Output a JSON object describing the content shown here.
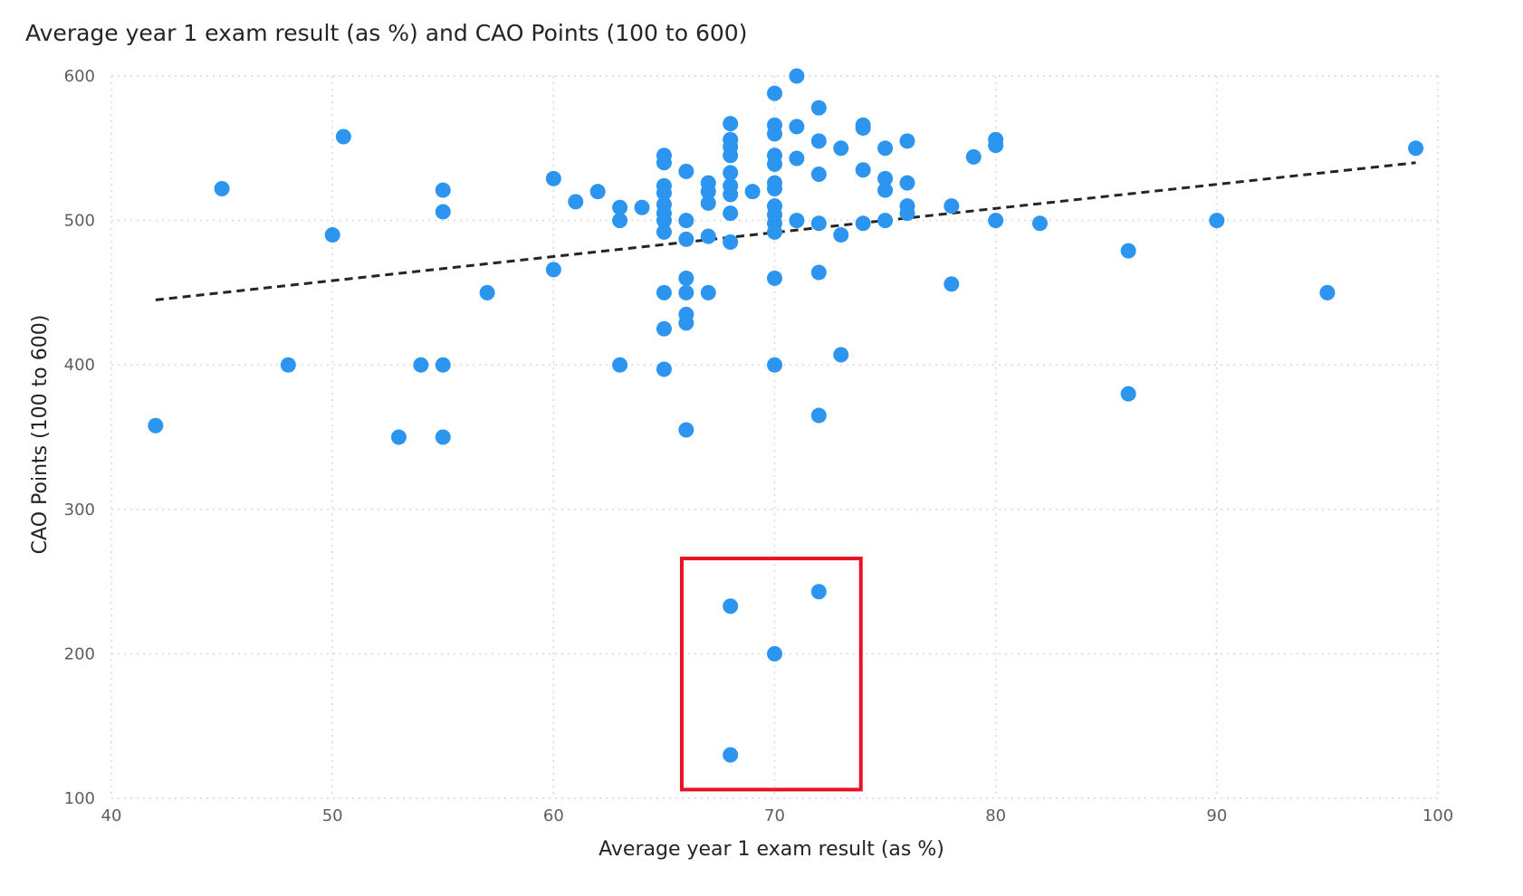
{
  "chart_data": {
    "type": "scatter",
    "title": "Average year 1 exam result (as %) and CAO Points (100 to 600)",
    "xlabel": "Average year 1 exam result (as %)",
    "ylabel": "CAO Points (100 to 600)",
    "xlim": [
      40,
      100
    ],
    "ylim": [
      100,
      600
    ],
    "xticks": [
      "40",
      "50",
      "60",
      "70",
      "80",
      "90",
      "100"
    ],
    "yticks": [
      "100",
      "200",
      "300",
      "400",
      "500",
      "600"
    ],
    "grid": true,
    "point_color": "#2b95ef",
    "trendline": {
      "style": "dashed",
      "color": "#252423",
      "points": [
        [
          42,
          445
        ],
        [
          99,
          540
        ]
      ]
    },
    "highlight_box": {
      "color": "#e81123",
      "x_range": [
        65.8,
        73.9
      ],
      "y_range": [
        106,
        266
      ]
    },
    "points": [
      [
        42,
        358
      ],
      [
        45,
        522
      ],
      [
        48,
        400
      ],
      [
        50,
        490
      ],
      [
        50.5,
        558
      ],
      [
        53,
        350
      ],
      [
        54,
        400
      ],
      [
        55,
        400
      ],
      [
        55,
        350
      ],
      [
        55,
        521
      ],
      [
        55,
        506
      ],
      [
        57,
        450
      ],
      [
        60,
        529
      ],
      [
        60,
        466
      ],
      [
        61,
        513
      ],
      [
        62,
        520
      ],
      [
        63,
        509
      ],
      [
        63,
        500
      ],
      [
        63,
        400
      ],
      [
        64,
        509
      ],
      [
        65,
        545
      ],
      [
        65,
        540
      ],
      [
        65,
        524
      ],
      [
        65,
        519
      ],
      [
        65,
        511
      ],
      [
        65,
        505
      ],
      [
        65,
        500
      ],
      [
        65,
        492
      ],
      [
        65,
        450
      ],
      [
        65,
        425
      ],
      [
        65,
        397
      ],
      [
        66,
        534
      ],
      [
        66,
        500
      ],
      [
        66,
        487
      ],
      [
        66,
        460
      ],
      [
        66,
        450
      ],
      [
        66,
        435
      ],
      [
        66,
        429
      ],
      [
        66,
        355
      ],
      [
        67,
        526
      ],
      [
        67,
        520
      ],
      [
        67,
        512
      ],
      [
        67,
        489
      ],
      [
        67,
        450
      ],
      [
        68,
        567
      ],
      [
        68,
        556
      ],
      [
        68,
        551
      ],
      [
        68,
        545
      ],
      [
        68,
        533
      ],
      [
        68,
        524
      ],
      [
        68,
        518
      ],
      [
        68,
        505
      ],
      [
        68,
        485
      ],
      [
        68,
        233
      ],
      [
        68,
        130
      ],
      [
        69,
        520
      ],
      [
        70,
        588
      ],
      [
        70,
        566
      ],
      [
        70,
        560
      ],
      [
        70,
        545
      ],
      [
        70,
        539
      ],
      [
        70,
        526
      ],
      [
        70,
        522
      ],
      [
        70,
        510
      ],
      [
        70,
        504
      ],
      [
        70,
        498
      ],
      [
        70,
        492
      ],
      [
        70,
        460
      ],
      [
        70,
        400
      ],
      [
        70,
        200
      ],
      [
        71,
        600
      ],
      [
        71,
        565
      ],
      [
        71,
        543
      ],
      [
        71,
        500
      ],
      [
        72,
        578
      ],
      [
        72,
        555
      ],
      [
        72,
        532
      ],
      [
        72,
        498
      ],
      [
        72,
        464
      ],
      [
        72,
        365
      ],
      [
        72,
        243
      ],
      [
        73,
        550
      ],
      [
        73,
        490
      ],
      [
        73,
        407
      ],
      [
        74,
        566
      ],
      [
        74,
        564
      ],
      [
        74,
        535
      ],
      [
        74,
        498
      ],
      [
        75,
        550
      ],
      [
        75,
        529
      ],
      [
        75,
        521
      ],
      [
        75,
        500
      ],
      [
        76,
        555
      ],
      [
        76,
        526
      ],
      [
        76,
        510
      ],
      [
        76,
        505
      ],
      [
        78,
        510
      ],
      [
        78,
        456
      ],
      [
        79,
        544
      ],
      [
        80,
        556
      ],
      [
        80,
        552
      ],
      [
        80,
        500
      ],
      [
        82,
        498
      ],
      [
        86,
        479
      ],
      [
        86,
        380
      ],
      [
        90,
        500
      ],
      [
        95,
        450
      ],
      [
        99,
        550
      ]
    ]
  }
}
